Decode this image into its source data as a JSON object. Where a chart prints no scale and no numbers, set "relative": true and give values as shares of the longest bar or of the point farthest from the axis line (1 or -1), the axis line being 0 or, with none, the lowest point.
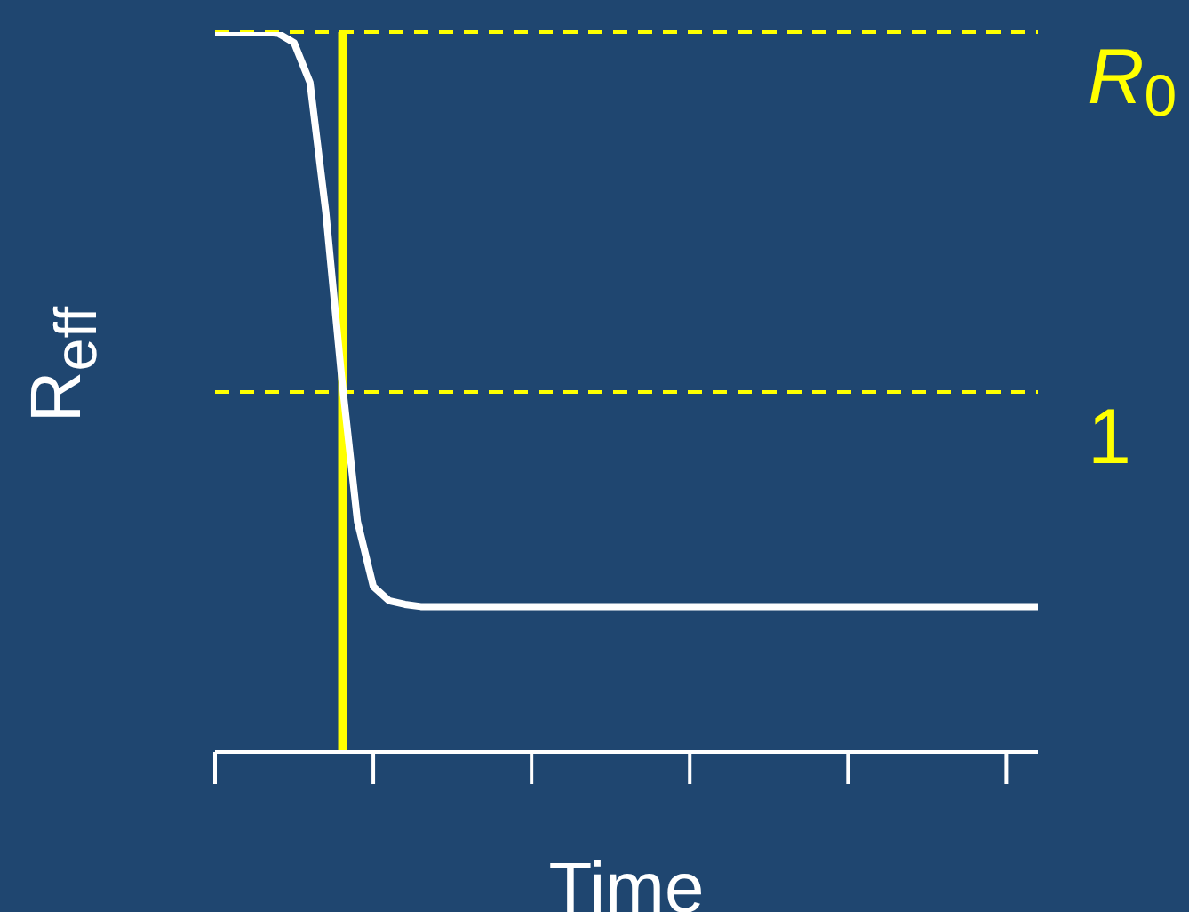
{
  "chart_data": {
    "type": "line",
    "relative": true,
    "xlabel": "Time",
    "ylabel": "R$_{eff}$",
    "categories": [
      null,
      null,
      null,
      null,
      null,
      null,
      null,
      null,
      null,
      null,
      null,
      null,
      null,
      null,
      null,
      null,
      null,
      null,
      null,
      null,
      null,
      null,
      null,
      null,
      null,
      null,
      null,
      null,
      null,
      null,
      null,
      null,
      null,
      null,
      null,
      null,
      null,
      null,
      null,
      null,
      null,
      null,
      null,
      null,
      null,
      null,
      null,
      null,
      null,
      null,
      null,
      null,
      null
    ],
    "series": [
      {
        "color": "#ffffff",
        "values": [
          1,
          1,
          1,
          1,
          0.998,
          0.985,
          0.93,
          0.75,
          0.52,
          0.32,
          0.23,
          0.21,
          0.205,
          0.202,
          0.202,
          0.202,
          0.202,
          0.202,
          0.202,
          0.202,
          0.202,
          0.202,
          0.202,
          0.202,
          0.202,
          0.202,
          0.202,
          0.202,
          0.202,
          0.202,
          0.202,
          0.202,
          0.202,
          0.202,
          0.202,
          0.202,
          0.202,
          0.202,
          0.202,
          0.202,
          0.202,
          0.202,
          0.202,
          0.202,
          0.202,
          0.202,
          0.202,
          0.202,
          0.202,
          0.202,
          0.202,
          0.202,
          0.202
        ]
      }
    ],
    "ref_lines": [
      {
        "axis": "y",
        "value": 1,
        "label": "R$_{0}$",
        "color": "#ffff00",
        "line_style": "dashed"
      },
      {
        "axis": "y",
        "value": 0.5,
        "label": "1",
        "color": "#ffff00",
        "line_style": "dashed"
      }
    ]
  }
}
